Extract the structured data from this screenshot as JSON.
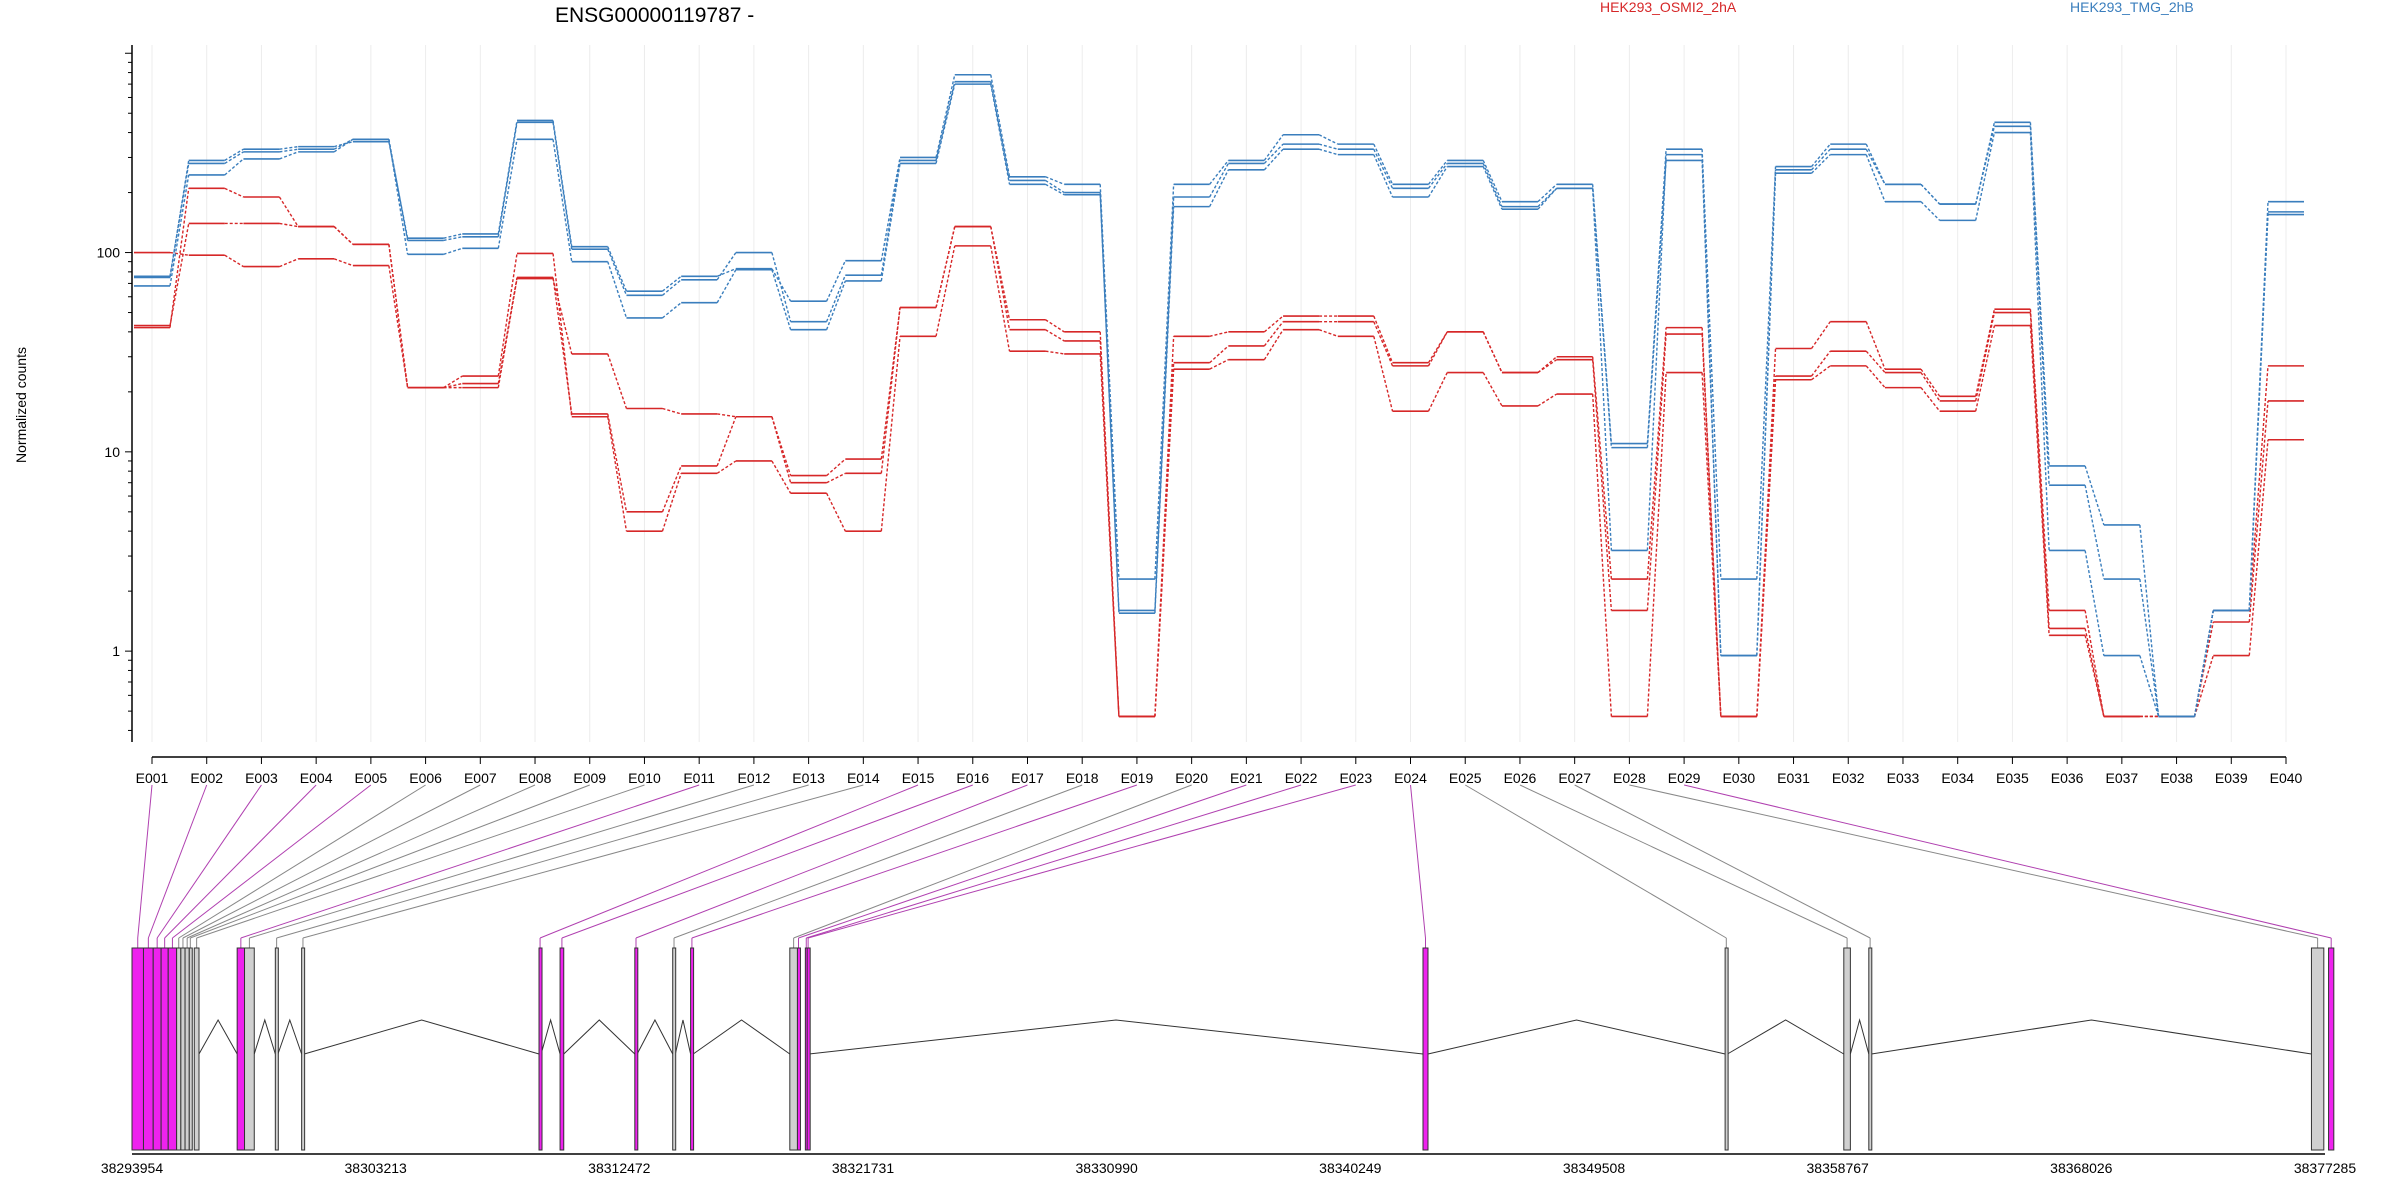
{
  "title": "ENSG00000119787 -",
  "chart_data": {
    "type": "line",
    "title": "ENSG00000119787 -",
    "ylabel": "Normalized counts",
    "yscale": "log",
    "ylim": [
      0.35,
      1100
    ],
    "yticks": [
      1,
      10,
      100
    ],
    "ytick_labels": [
      "1",
      "10",
      "100"
    ],
    "categories": [
      "E001",
      "E002",
      "E003",
      "E004",
      "E005",
      "E006",
      "E007",
      "E008",
      "E009",
      "E010",
      "E011",
      "E012",
      "E013",
      "E014",
      "E015",
      "E016",
      "E017",
      "E018",
      "E019",
      "E020",
      "E021",
      "E022",
      "E023",
      "E024",
      "E025",
      "E026",
      "E027",
      "E028",
      "E029",
      "E030",
      "E031",
      "E032",
      "E033",
      "E034",
      "E035",
      "E036",
      "E037",
      "E038",
      "E039",
      "E040"
    ],
    "legend_placement": "top-right",
    "series": [
      {
        "name": "HEK293_OSMI2_2hA",
        "color": "#d62728",
        "values": [
          42,
          210,
          190,
          135,
          110,
          21,
          21,
          74,
          31,
          16.5,
          15.5,
          15,
          7.6,
          9.2,
          53,
          135,
          46,
          40,
          0.47,
          38,
          40,
          48,
          48,
          28,
          40,
          25,
          30,
          2.3,
          42,
          0.47,
          33,
          45,
          26,
          19,
          52,
          1.6,
          0.47,
          0.47,
          1.6,
          27
        ]
      },
      {
        "name": "HEK293_OSMI2_2hA",
        "color": "#d62728",
        "values": [
          43,
          140,
          140,
          135,
          110,
          21,
          22,
          75,
          15.5,
          5,
          8.5,
          15,
          7,
          7.8,
          53,
          135,
          41,
          36,
          0.47,
          28,
          34,
          45,
          45,
          27,
          40,
          25,
          29,
          1.6,
          39,
          0.47,
          24,
          32,
          25,
          18,
          50,
          1.3,
          0.47,
          0.47,
          1.4,
          18
        ]
      },
      {
        "name": "HEK293_OSMI2_2hA",
        "color": "#d62728",
        "values": [
          100,
          97,
          85,
          93,
          86,
          21,
          24,
          99,
          15,
          4,
          7.8,
          9,
          6.2,
          4,
          38,
          108,
          32,
          31,
          0.47,
          26,
          29,
          41,
          38,
          16,
          25,
          17,
          19.5,
          0.47,
          25,
          0.47,
          23,
          27,
          21,
          16,
          43,
          1.2,
          0.47,
          0.47,
          0.95,
          11.5
        ]
      },
      {
        "name": "HEK293_TMG_2hB",
        "color": "#3a7ebd",
        "values": [
          75,
          290,
          330,
          340,
          360,
          118,
          124,
          460,
          107,
          64,
          76,
          83,
          57,
          91,
          300,
          780,
          240,
          220,
          2.3,
          220,
          290,
          390,
          350,
          220,
          290,
          180,
          220,
          11,
          330,
          2.3,
          270,
          350,
          220,
          175,
          450,
          8.5,
          4.3,
          0.47,
          1.6,
          180
        ]
      },
      {
        "name": "HEK293_TMG_2hB",
        "color": "#3a7ebd",
        "values": [
          76,
          280,
          320,
          330,
          370,
          115,
          120,
          450,
          104,
          61,
          73,
          100,
          45,
          77,
          290,
          720,
          230,
          200,
          1.6,
          190,
          280,
          350,
          330,
          210,
          280,
          170,
          210,
          3.2,
          310,
          0.95,
          260,
          330,
          220,
          175,
          430,
          6.8,
          2.3,
          0.47,
          1.6,
          160
        ]
      },
      {
        "name": "HEK293_TMG_2hB",
        "color": "#3a7ebd",
        "values": [
          68,
          245,
          295,
          320,
          370,
          98,
          105,
          370,
          90,
          47,
          56,
          82,
          41,
          72,
          280,
          700,
          220,
          195,
          1.55,
          170,
          260,
          330,
          310,
          190,
          270,
          165,
          210,
          10.5,
          290,
          0.95,
          250,
          310,
          180,
          145,
          400,
          3.2,
          0.95,
          0.47,
          1.6,
          155
        ]
      }
    ]
  },
  "legend": {
    "series_a": "HEK293_OSMI2_2hA",
    "series_b": "HEK293_TMG_2hB"
  },
  "gene_model": {
    "coordinates": [
      "38293954",
      "38303213",
      "38312472",
      "38321731",
      "38330990",
      "38340249",
      "38349508",
      "38358767",
      "38368026",
      "38377285"
    ],
    "coord_start": 38293954,
    "coord_end": 38377285,
    "exons": [
      {
        "start": 38293954,
        "end": 38294390,
        "sig": true
      },
      {
        "start": 38294390,
        "end": 38294760,
        "sig": true
      },
      {
        "start": 38294760,
        "end": 38295060,
        "sig": true
      },
      {
        "start": 38295060,
        "end": 38295330,
        "sig": true
      },
      {
        "start": 38295330,
        "end": 38295650,
        "sig": true
      },
      {
        "start": 38295650,
        "end": 38295810,
        "sig": false
      },
      {
        "start": 38295810,
        "end": 38295970,
        "sig": false
      },
      {
        "start": 38295970,
        "end": 38296130,
        "sig": false
      },
      {
        "start": 38296130,
        "end": 38296210,
        "sig": false
      },
      {
        "start": 38296320,
        "end": 38296500,
        "sig": false
      },
      {
        "start": 38297950,
        "end": 38298230,
        "sig": true
      },
      {
        "start": 38298230,
        "end": 38298600,
        "sig": false
      },
      {
        "start": 38299400,
        "end": 38299500,
        "sig": false
      },
      {
        "start": 38300400,
        "end": 38300500,
        "sig": false
      },
      {
        "start": 38309420,
        "end": 38309500,
        "sig": true
      },
      {
        "start": 38310220,
        "end": 38310360,
        "sig": true
      },
      {
        "start": 38313060,
        "end": 38313150,
        "sig": true
      },
      {
        "start": 38314500,
        "end": 38314600,
        "sig": false
      },
      {
        "start": 38315180,
        "end": 38315280,
        "sig": true
      },
      {
        "start": 38318950,
        "end": 38319240,
        "sig": false
      },
      {
        "start": 38319240,
        "end": 38319320,
        "sig": true
      },
      {
        "start": 38319540,
        "end": 38319610,
        "sig": true
      },
      {
        "start": 38319610,
        "end": 38319680,
        "sig": true
      },
      {
        "start": 38343010,
        "end": 38343200,
        "sig": true
      },
      {
        "start": 38354490,
        "end": 38354580,
        "sig": false
      },
      {
        "start": 38359000,
        "end": 38359250,
        "sig": false
      },
      {
        "start": 38359950,
        "end": 38360050,
        "sig": false
      },
      {
        "start": 38376770,
        "end": 38377240,
        "sig": false
      },
      {
        "start": 38377420,
        "end": 38377620,
        "sig": true
      }
    ]
  }
}
